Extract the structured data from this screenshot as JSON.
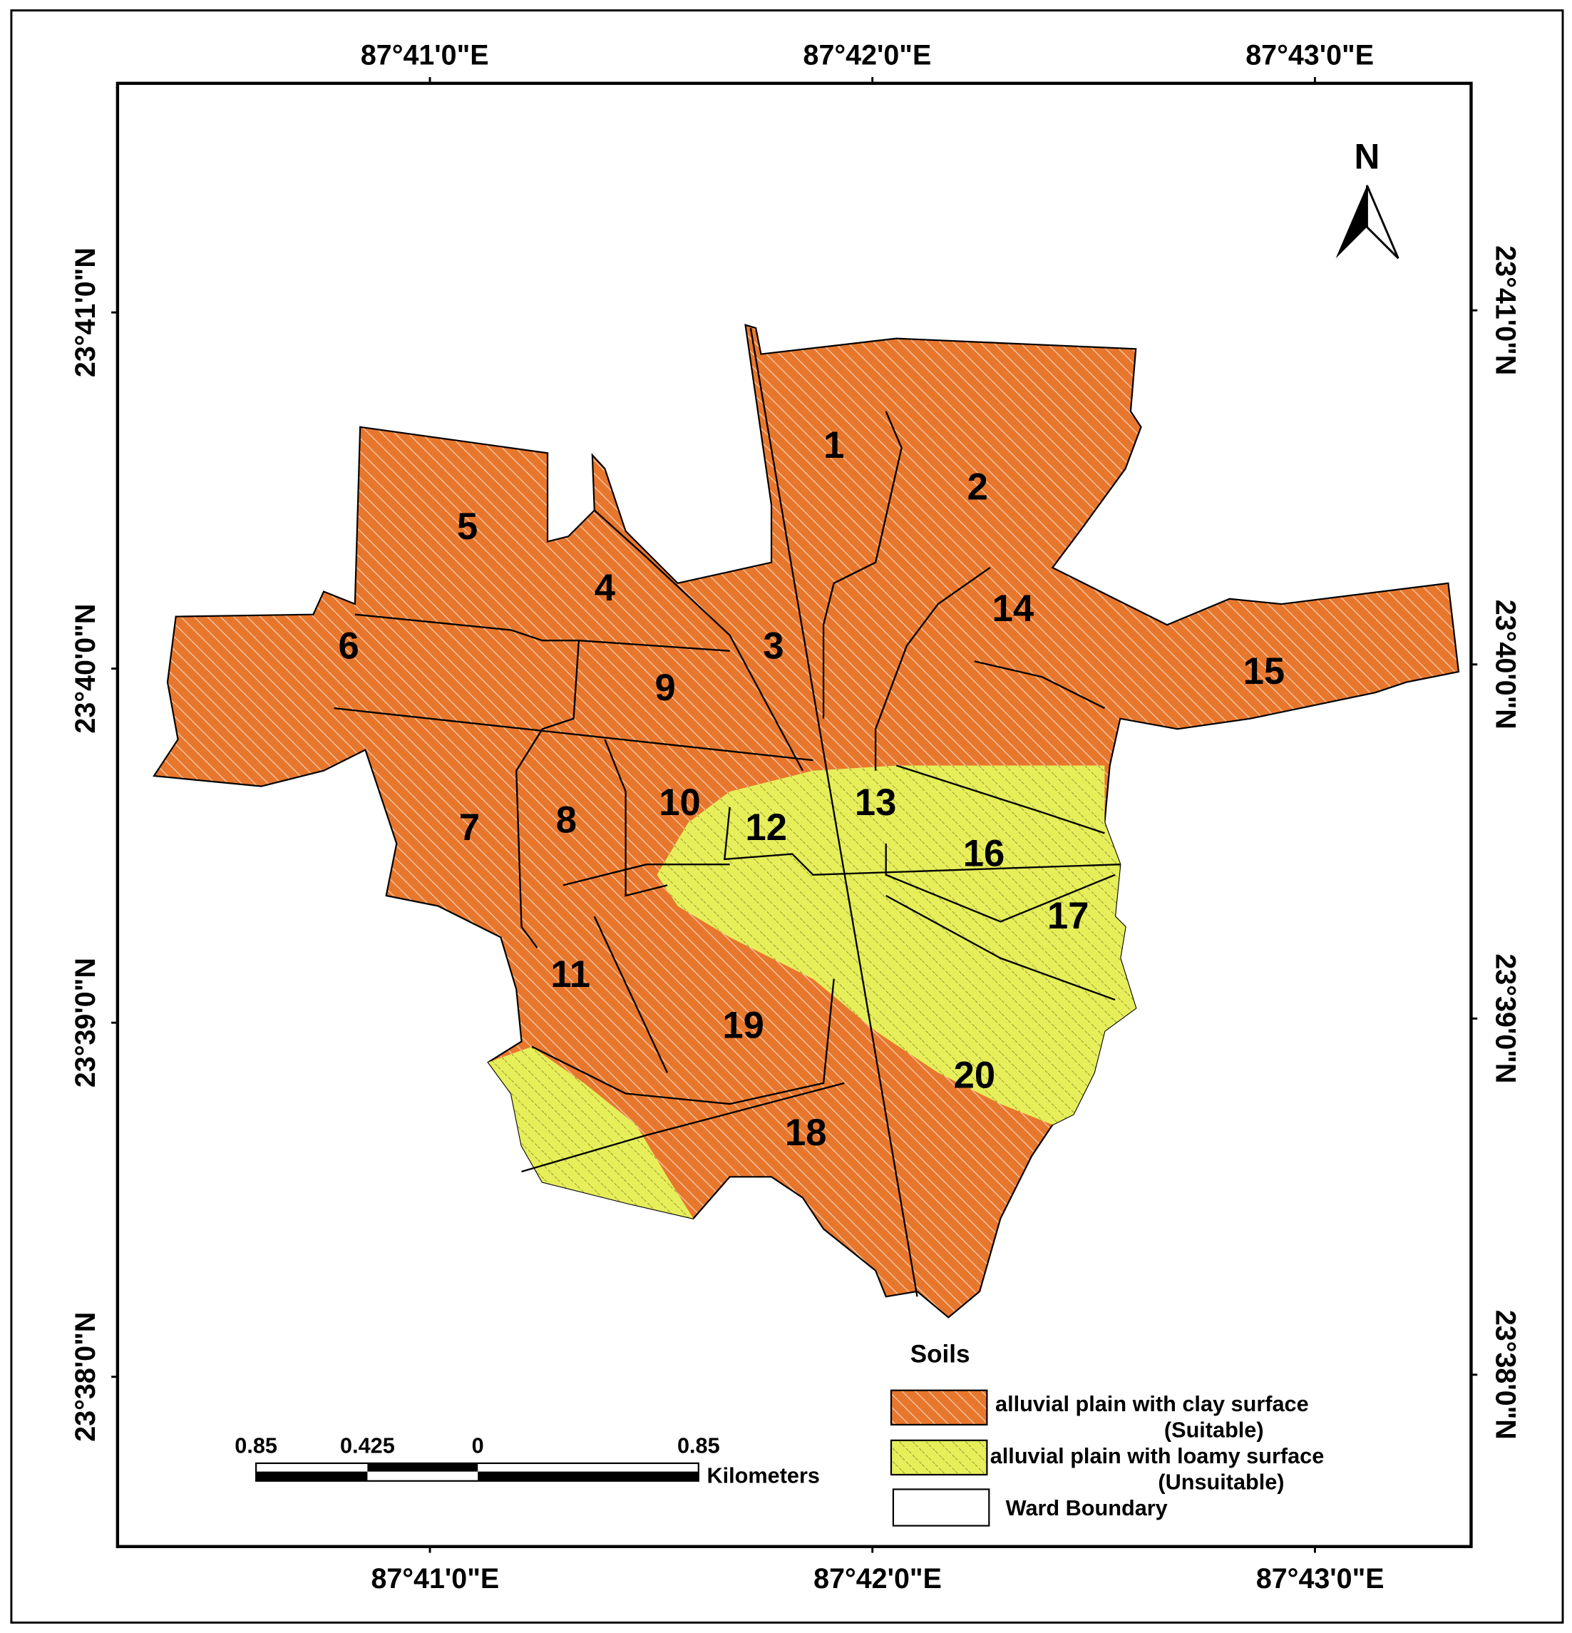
{
  "map": {
    "x_labels_top": [
      "87°41'0\"E",
      "87°42'0\"E",
      "87°43'0\"E"
    ],
    "x_labels_bottom": [
      "87°41'0\"E",
      "87°42'0\"E",
      "87°43'0\"E"
    ],
    "y_labels_left": [
      "23°41'0\"N",
      "23°40'0\"N",
      "23°39'0\"N",
      "23°38'0\"N"
    ],
    "y_labels_right": [
      "23°41'0\"N",
      "23°40'0\"N",
      "23°39'0\"N",
      "23°38'0\"N"
    ],
    "north": "N",
    "wards": [
      {
        "label": "1"
      },
      {
        "label": "2"
      },
      {
        "label": "3"
      },
      {
        "label": "4"
      },
      {
        "label": "5"
      },
      {
        "label": "6"
      },
      {
        "label": "7"
      },
      {
        "label": "8"
      },
      {
        "label": "9"
      },
      {
        "label": "10"
      },
      {
        "label": "11"
      },
      {
        "label": "12"
      },
      {
        "label": "13"
      },
      {
        "label": "14"
      },
      {
        "label": "15"
      },
      {
        "label": "16"
      },
      {
        "label": "17"
      },
      {
        "label": "18"
      },
      {
        "label": "19"
      },
      {
        "label": "20"
      }
    ],
    "legend": {
      "title": "Soils",
      "items": [
        {
          "label": "alluvial plain with clay surface",
          "note": "(Suitable)"
        },
        {
          "label": "alluvial plain with loamy surface",
          "note": "(Unsuitable)"
        },
        {
          "label": "Ward Boundary"
        }
      ]
    },
    "scale_bar": {
      "labels": [
        "0.85",
        "0.425",
        "0",
        "0.85"
      ],
      "unit": "Kilometers"
    }
  }
}
